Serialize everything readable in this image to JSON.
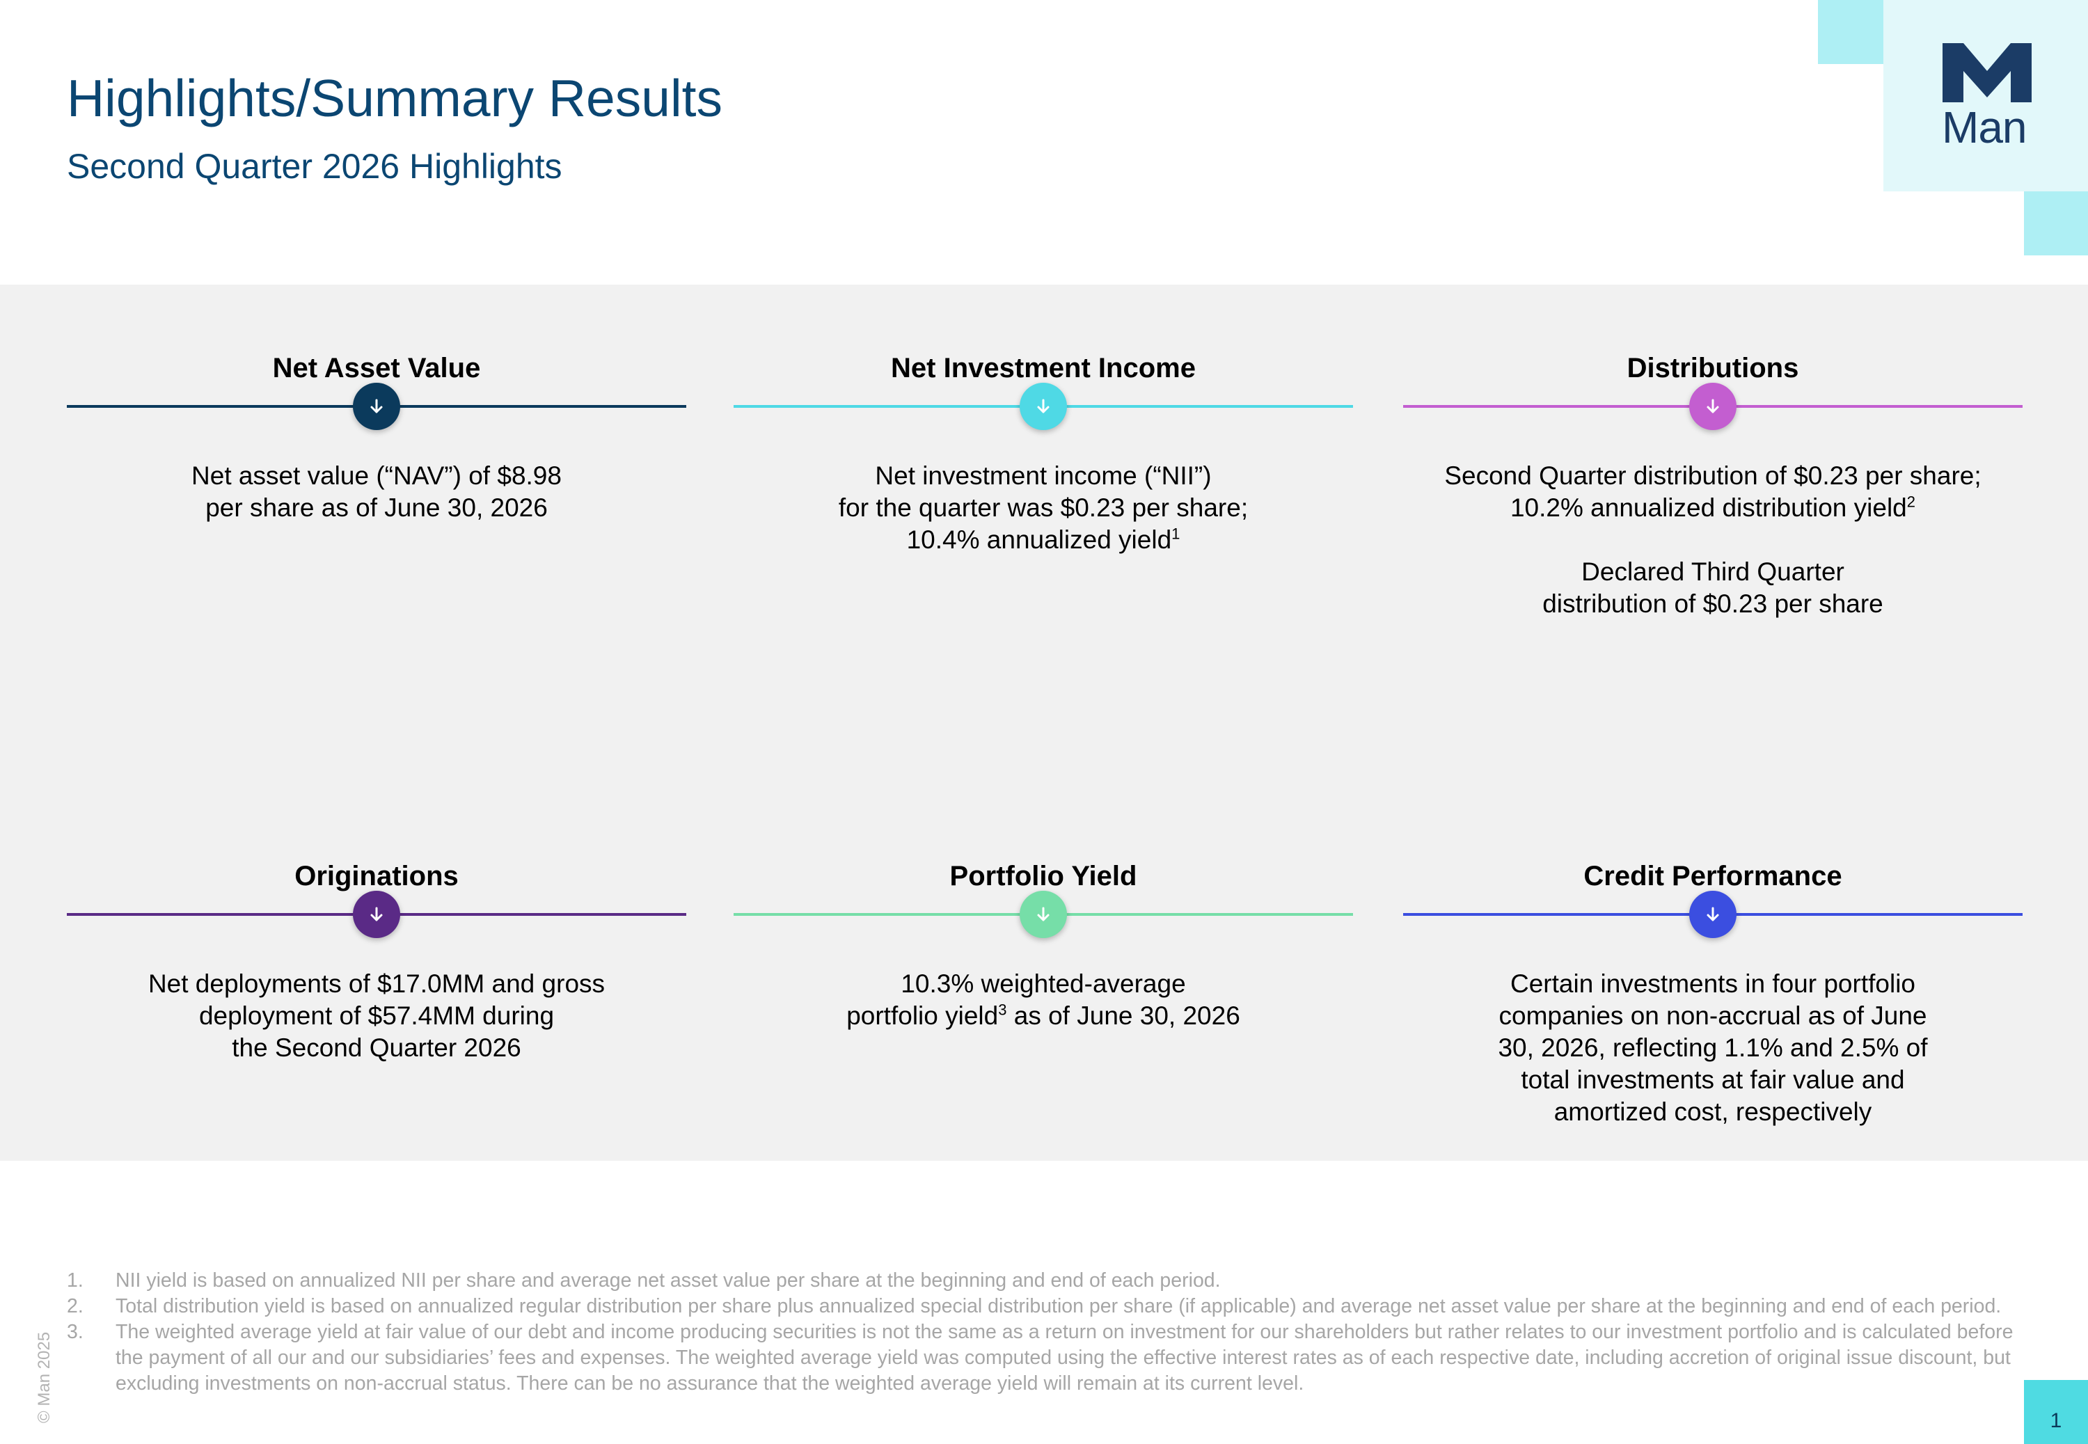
{
  "header": {
    "title": "Highlights/Summary Results",
    "subtitle": "Second Quarter 2026 Highlights"
  },
  "logo": {
    "wordmark": "Man",
    "color": "#1b3c66"
  },
  "cards": [
    {
      "heading": "Net Asset Value",
      "color": "#0b3a5c",
      "icon": "arrow-down-icon",
      "body": [
        {
          "lines": [
            {
              "text": "Net asset value (“NAV”) of $8.98"
            },
            {
              "text": "per share as of June 30, 2026"
            }
          ]
        }
      ]
    },
    {
      "heading": "Net Investment Income",
      "color": "#4fd9e5",
      "icon": "arrow-down-icon",
      "body": [
        {
          "lines": [
            {
              "text": "Net investment income (“NII”)"
            },
            {
              "text": "for the quarter was $0.23 per share;"
            },
            {
              "text": "10.4% annualized yield",
              "sup": "1"
            }
          ]
        }
      ]
    },
    {
      "heading": "Distributions",
      "color": "#c35ed0",
      "icon": "arrow-down-icon",
      "body": [
        {
          "lines": [
            {
              "text": "Second Quarter distribution of $0.23 per share;"
            },
            {
              "text": "10.2% annualized distribution yield",
              "sup": "2"
            }
          ]
        },
        {
          "lines": [
            {
              "text": "Declared Third Quarter"
            },
            {
              "text": "distribution of $0.23 per share"
            }
          ]
        }
      ]
    },
    {
      "heading": "Originations",
      "color": "#5a2a86",
      "icon": "arrow-down-icon",
      "body": [
        {
          "lines": [
            {
              "text": "Net deployments of $17.0MM and gross"
            },
            {
              "text": "deployment of $57.4MM during"
            },
            {
              "text": "the Second Quarter 2026"
            }
          ]
        }
      ]
    },
    {
      "heading": "Portfolio Yield",
      "color": "#76dea8",
      "icon": "arrow-down-icon",
      "body": [
        {
          "lines": [
            {
              "text": "10.3% weighted-average"
            },
            {
              "text": "portfolio yield",
              "sup": "3",
              "after": " as of June 30, 2026"
            }
          ]
        }
      ]
    },
    {
      "heading": "Credit Performance",
      "color": "#3b4ee0",
      "icon": "arrow-down-icon",
      "body": [
        {
          "lines": [
            {
              "text": "Certain investments in four portfolio"
            },
            {
              "text": "companies on non-accrual as of June"
            },
            {
              "text": "30, 2026, reflecting 1.1% and 2.5% of"
            },
            {
              "text": "total investments at fair value and"
            },
            {
              "text": "amortized cost, respectively"
            }
          ]
        }
      ]
    }
  ],
  "footnotes": [
    {
      "num": "1.",
      "text": "NII yield is based on annualized NII per share and average net asset value per share at the beginning and end of each period."
    },
    {
      "num": "2.",
      "text": "Total distribution yield is based on annualized regular distribution per share plus annualized special distribution per share (if applicable) and average net asset value per share at the beginning and end of each period."
    },
    {
      "num": "3.",
      "text": "The weighted average yield at fair value of our debt and income producing securities is not the same as a return on investment for our shareholders but rather relates to our investment portfolio and is calculated before the payment of all our and our subsidiaries’ fees and expenses. The weighted average yield was computed using the effective interest rates as of each respective date, including accretion of original issue discount, but excluding investments on non-accrual status. There can be no assurance that the weighted average yield will remain at its current level."
    }
  ],
  "copyright": "© Man 2025",
  "page_number": "1"
}
